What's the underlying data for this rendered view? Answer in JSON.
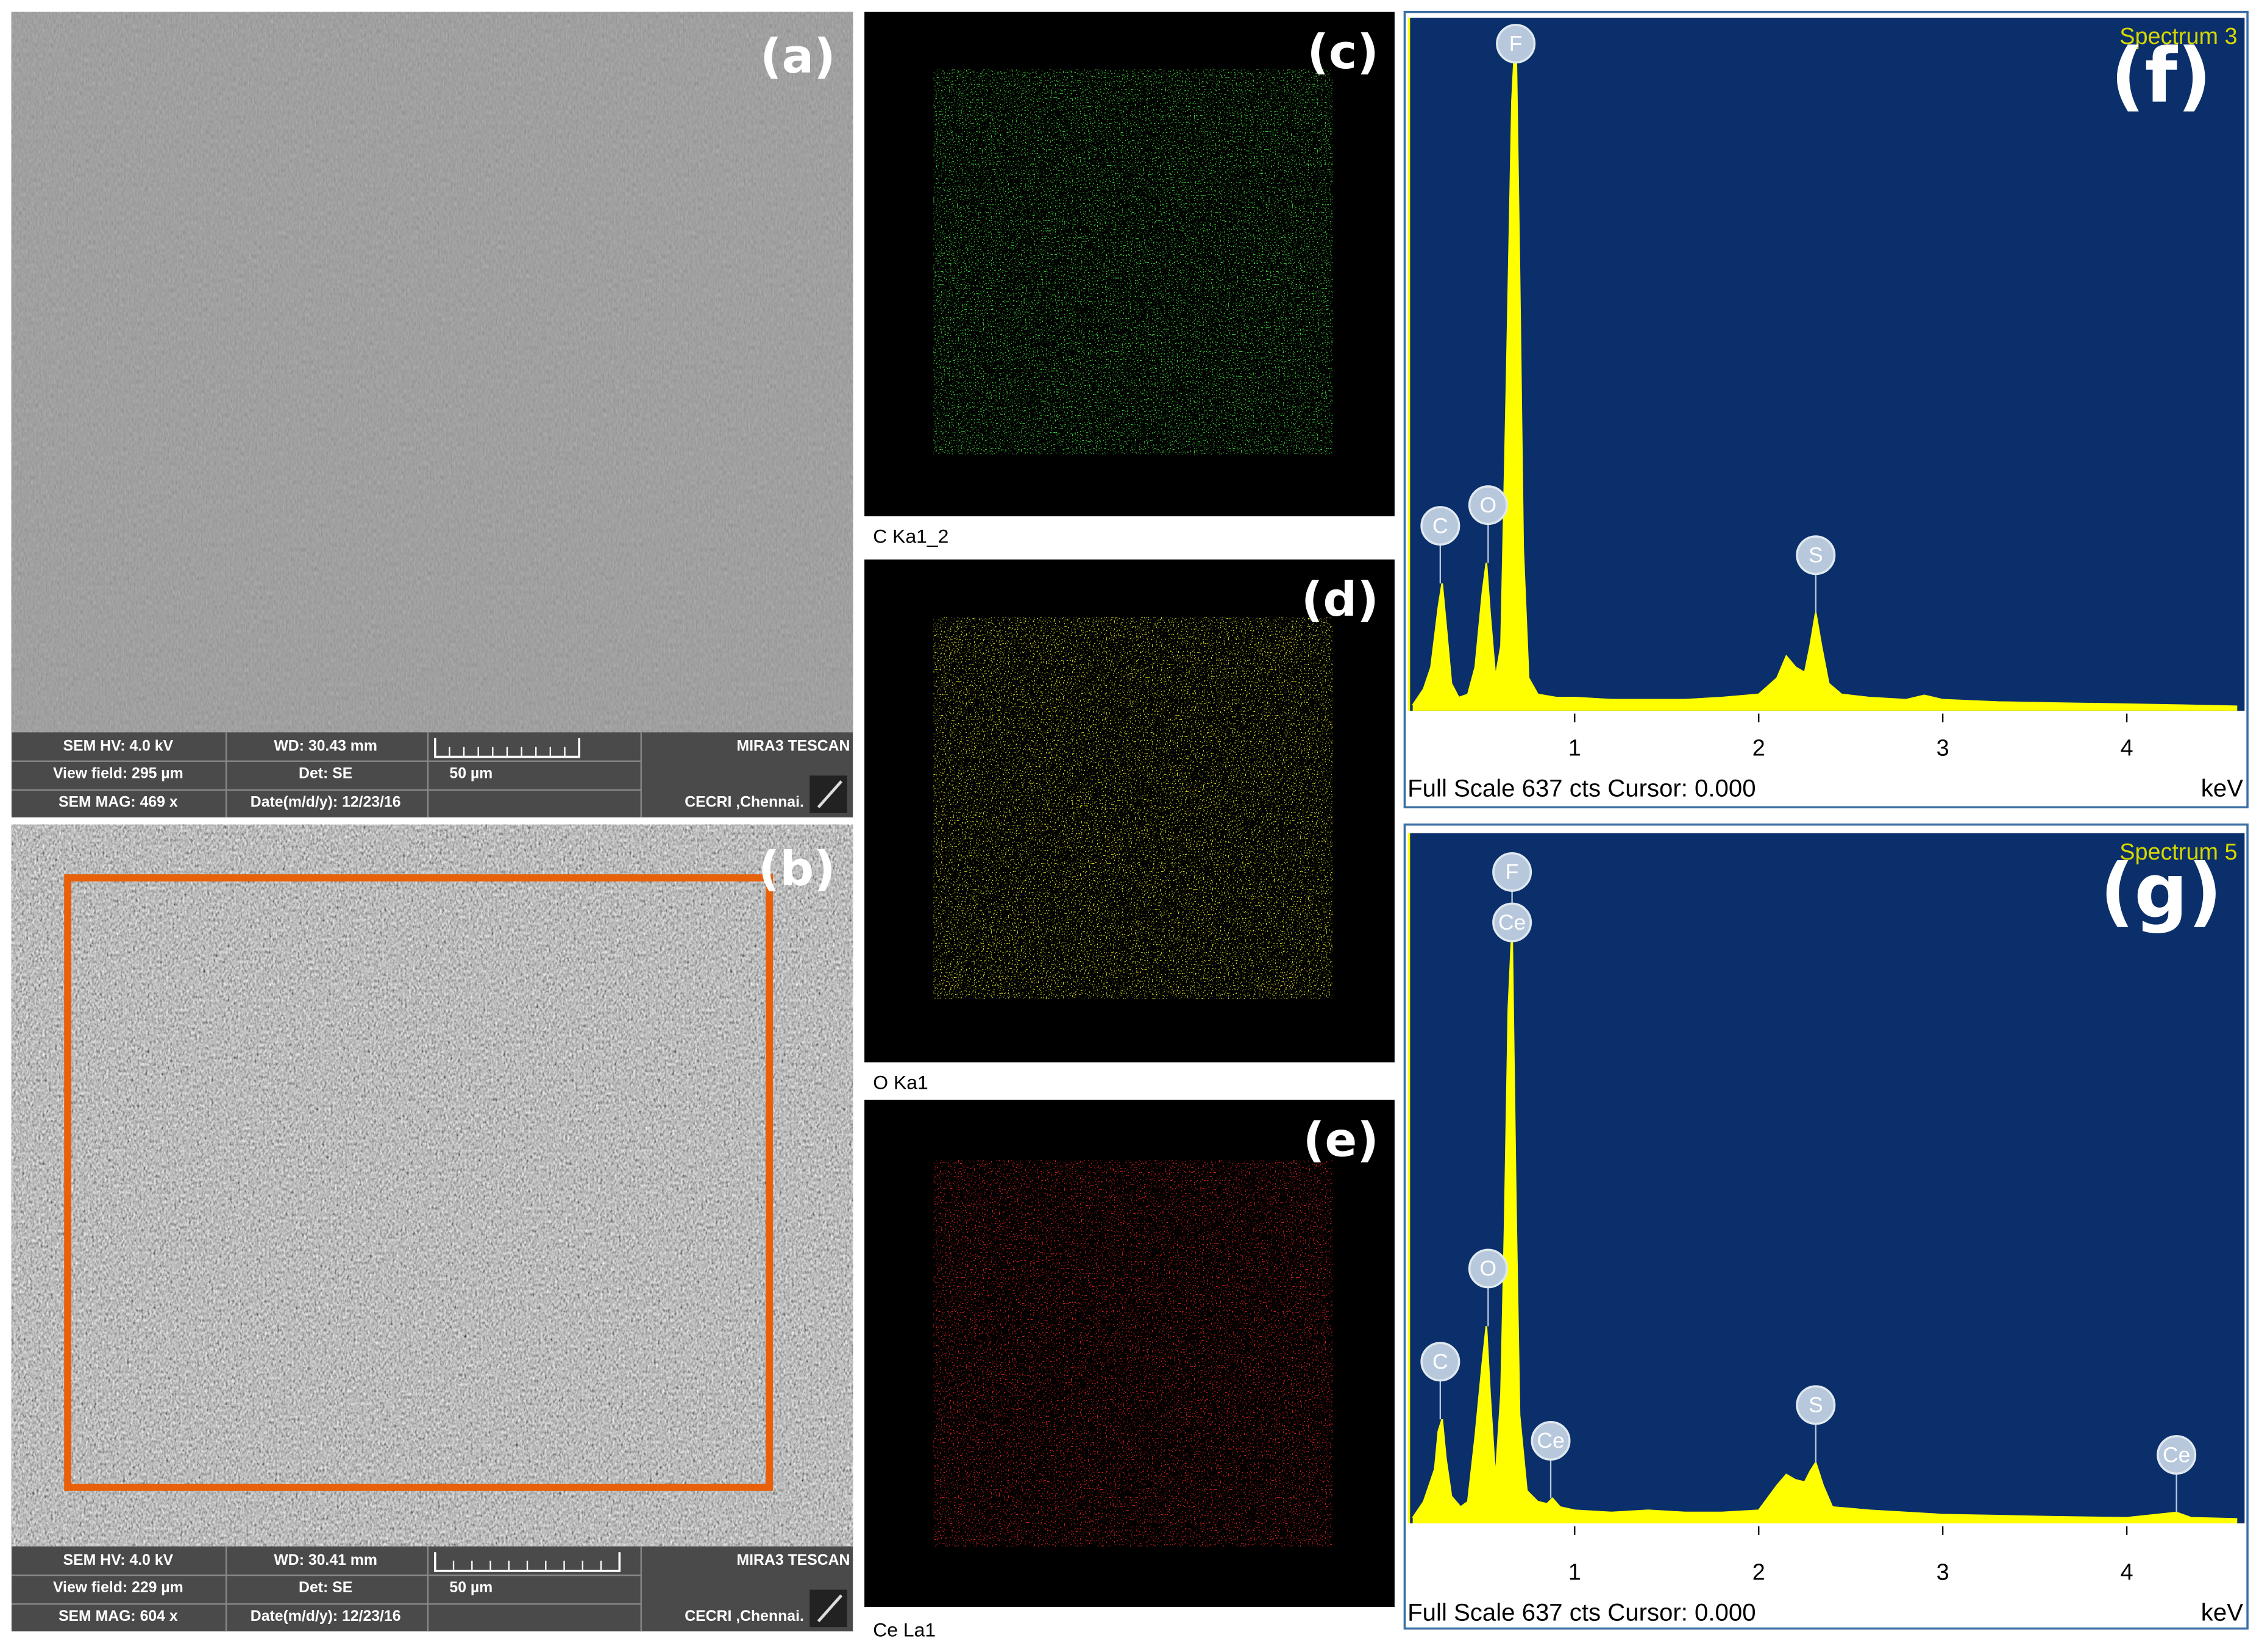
{
  "sem_images": [
    {
      "label": "(a)",
      "hv": "SEM HV: 4.0 kV",
      "wd": "WD: 30.43 mm",
      "brand": "MIRA3 TESCAN",
      "view_field": "View field: 295 µm",
      "det": "Det: SE",
      "scale": "50 µm",
      "mag": "SEM MAG: 469 x",
      "date": "Date(m/d/y): 12/23/16",
      "site": "CECRI ,Chennai."
    },
    {
      "label": "(b)",
      "hv": "SEM HV: 4.0 kV",
      "wd": "WD: 30.41 mm",
      "brand": "MIRA3 TESCAN",
      "view_field": "View field: 229 µm",
      "det": "Det: SE",
      "scale": "50 µm",
      "mag": "SEM MAG: 604 x",
      "date": "Date(m/d/y): 12/23/16",
      "site": "CECRI ,Chennai."
    }
  ],
  "element_maps": [
    {
      "label": "(c)",
      "caption": "C Ka1_2",
      "color": "#3ccc3c"
    },
    {
      "label": "(d)",
      "caption": "O Ka1",
      "color": "#d8d820"
    },
    {
      "label": "(e)",
      "caption": "Ce La1",
      "color": "#d02020"
    }
  ],
  "chart_data": [
    {
      "type": "area",
      "panel_label": "(f)",
      "title": "Spectrum 3",
      "footer": "Full Scale 637 cts Cursor: 0.000",
      "x_label": "keV",
      "color": "#ffff00",
      "x": [
        0.12,
        0.18,
        0.22,
        0.26,
        0.28,
        0.3,
        0.33,
        0.37,
        0.42,
        0.46,
        0.5,
        0.52,
        0.54,
        0.57,
        0.6,
        0.63,
        0.66,
        0.68,
        0.7,
        0.72,
        0.75,
        0.8,
        0.9,
        1.0,
        1.2,
        1.4,
        1.6,
        1.8,
        2.0,
        2.1,
        2.15,
        2.2,
        2.25,
        2.28,
        2.31,
        2.34,
        2.38,
        2.45,
        2.6,
        2.8,
        2.9,
        3.0,
        3.3,
        3.6,
        4.0,
        4.3,
        4.6
      ],
      "values": [
        5,
        20,
        40,
        95,
        117,
        80,
        25,
        12,
        15,
        40,
        110,
        136,
        90,
        30,
        60,
        300,
        560,
        630,
        400,
        150,
        30,
        15,
        12,
        12,
        10,
        10,
        10,
        12,
        15,
        30,
        50,
        40,
        35,
        60,
        90,
        60,
        25,
        15,
        12,
        10,
        14,
        10,
        8,
        7,
        6,
        5,
        4
      ],
      "xlim": [
        0.1,
        4.64
      ],
      "xticks": [
        1,
        2,
        3,
        4
      ],
      "ylim": [
        0,
        637
      ],
      "annotations": [
        {
          "text": "C",
          "x": 0.27
        },
        {
          "text": "O",
          "x": 0.53
        },
        {
          "text": "F",
          "x": 0.68
        },
        {
          "text": "S",
          "x": 2.31
        }
      ]
    },
    {
      "type": "area",
      "panel_label": "(g)",
      "title": "Spectrum 5",
      "footer": "Full Scale 637 cts Cursor: 0.000",
      "x_label": "keV",
      "color": "#ffff00",
      "x": [
        0.12,
        0.18,
        0.24,
        0.26,
        0.28,
        0.3,
        0.33,
        0.38,
        0.42,
        0.46,
        0.5,
        0.52,
        0.54,
        0.57,
        0.6,
        0.62,
        0.64,
        0.66,
        0.68,
        0.7,
        0.74,
        0.8,
        0.85,
        0.88,
        0.92,
        1.0,
        1.2,
        1.4,
        1.6,
        1.8,
        2.0,
        2.1,
        2.15,
        2.2,
        2.25,
        2.28,
        2.31,
        2.35,
        2.4,
        2.6,
        2.8,
        3.0,
        3.3,
        3.6,
        4.0,
        4.27,
        4.35,
        4.6
      ],
      "values": [
        5,
        20,
        50,
        85,
        96,
        60,
        25,
        15,
        20,
        80,
        150,
        182,
        120,
        40,
        120,
        275,
        475,
        548,
        300,
        100,
        30,
        20,
        18,
        23,
        15,
        12,
        10,
        12,
        10,
        10,
        12,
        35,
        45,
        40,
        38,
        48,
        56,
        35,
        15,
        12,
        10,
        8,
        7,
        6,
        5,
        10,
        5,
        4
      ],
      "xlim": [
        0.1,
        4.64
      ],
      "xticks": [
        1,
        2,
        3,
        4
      ],
      "ylim": [
        0,
        637
      ],
      "annotations": [
        {
          "text": "C",
          "x": 0.27
        },
        {
          "text": "O",
          "x": 0.53
        },
        {
          "text": "F",
          "x": 0.66
        },
        {
          "text": "Ce",
          "x": 0.66
        },
        {
          "text": "Ce",
          "x": 0.87
        },
        {
          "text": "S",
          "x": 2.31
        },
        {
          "text": "Ce",
          "x": 4.27
        }
      ]
    }
  ]
}
